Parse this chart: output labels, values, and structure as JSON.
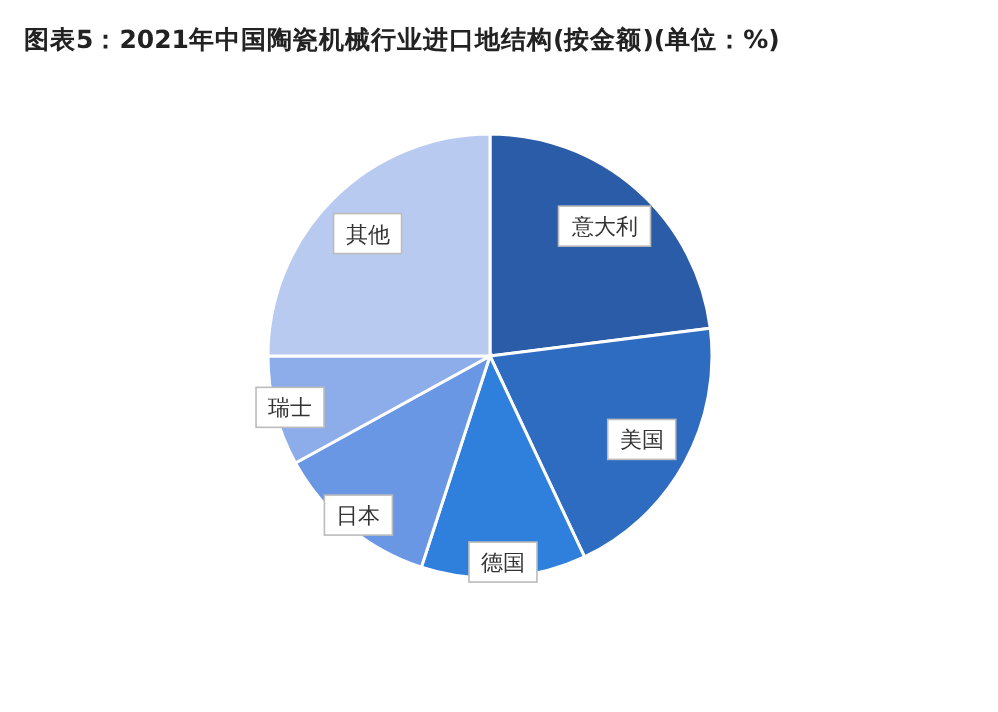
{
  "chart_data": {
    "type": "pie",
    "title": "图表5：2021年中国陶瓷机械行业进口地结构(按金额)(单位：%)",
    "categories": [
      "意大利",
      "美国",
      "德国",
      "日本",
      "瑞士",
      "其他"
    ],
    "values": [
      23,
      20,
      12,
      12,
      8,
      25
    ],
    "colors": [
      "#2b5ca8",
      "#2e6cc2",
      "#2f7fdc",
      "#6a97e4",
      "#8dadea",
      "#b9caf0"
    ],
    "legend": false
  }
}
